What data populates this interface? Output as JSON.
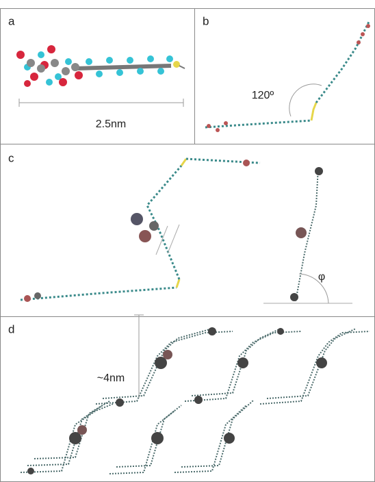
{
  "panels": [
    {
      "label": "a",
      "annotations": [
        "2.5nm"
      ]
    },
    {
      "label": "b",
      "annotations": [
        "120º"
      ]
    },
    {
      "label": "c",
      "annotations": [
        "φ"
      ]
    },
    {
      "label": "d",
      "annotations": [
        "~4nm"
      ]
    }
  ]
}
